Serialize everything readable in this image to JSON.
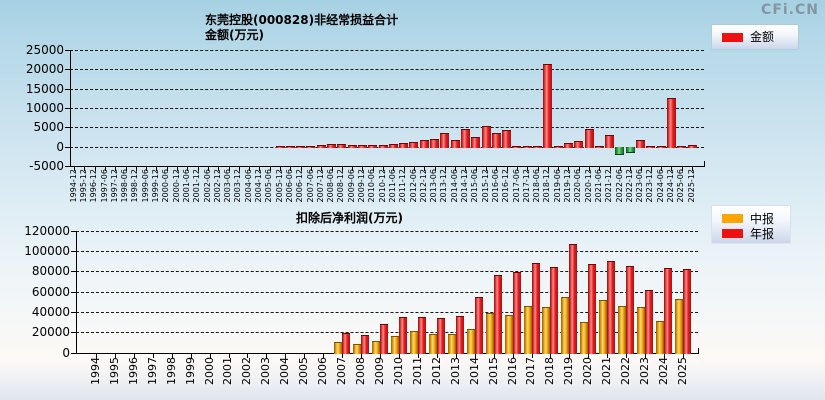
{
  "page": {
    "logo_text": "CFi.CN"
  },
  "chart_data": [
    {
      "type": "bar",
      "title": "东莞控股(000828)非经常损益合计",
      "subtitle": "金额(万元)",
      "legend": [
        {
          "key": "amount",
          "label": "金额",
          "color": "#ee1111"
        }
      ],
      "legend_position": "top-right",
      "grid": true,
      "ylim": [
        -5000,
        25000
      ],
      "yticks": [
        25000,
        20000,
        15000,
        10000,
        5000,
        0,
        -5000
      ],
      "categories": [
        "1994-12",
        "1995-12",
        "1996-12",
        "1997-06",
        "1997-12",
        "1998-06",
        "1998-12",
        "1999-06",
        "1999-12",
        "2000-06",
        "2000-12",
        "2001-06",
        "2001-12",
        "2002-06",
        "2002-12",
        "2003-06",
        "2003-12",
        "2004-06",
        "2004-12",
        "2005-06",
        "2005-12",
        "2006-06",
        "2006-12",
        "2007-06",
        "2007-12",
        "2008-06",
        "2008-12",
        "2009-06",
        "2009-12",
        "2010-06",
        "2010-12",
        "2011-06",
        "2011-12",
        "2012-06",
        "2012-12",
        "2013-06",
        "2013-12",
        "2014-06",
        "2014-12",
        "2015-06",
        "2015-12",
        "2016-06",
        "2016-12",
        "2017-06",
        "2017-12",
        "2018-06",
        "2018-12",
        "2019-06",
        "2019-12",
        "2020-06",
        "2020-12",
        "2021-06",
        "2021-12",
        "2022-06",
        "2022-12",
        "2023-06",
        "2023-12",
        "2024-06",
        "2024-12",
        "2025-06",
        "2025-12"
      ],
      "series": [
        {
          "key": "amount",
          "name": "金额",
          "values": [
            0,
            0,
            0,
            0,
            0,
            0,
            0,
            0,
            0,
            0,
            0,
            0,
            0,
            0,
            0,
            0,
            0,
            0,
            0,
            0,
            100,
            120,
            250,
            200,
            300,
            600,
            550,
            300,
            350,
            300,
            400,
            550,
            800,
            1200,
            1600,
            1900,
            3500,
            1600,
            4600,
            2400,
            5200,
            3450,
            4300,
            150,
            200,
            150,
            21300,
            260,
            860,
            1550,
            4650,
            120,
            3000,
            -1900,
            -1450,
            1720,
            120,
            130,
            12600,
            260,
            430
          ]
        }
      ],
      "bar_colors": {
        "positive": "#e42020",
        "negative": "#2f9e3f"
      }
    },
    {
      "type": "bar",
      "title": "扣除后净利润(万元)",
      "legend": [
        {
          "key": "interim",
          "label": "中报",
          "color": "#ffa500"
        },
        {
          "key": "annual",
          "label": "年报",
          "color": "#ee1111"
        }
      ],
      "legend_position": "top-right",
      "grid": true,
      "ylim": [
        0,
        120000
      ],
      "yticks": [
        120000,
        100000,
        80000,
        60000,
        40000,
        20000,
        0
      ],
      "categories": [
        "1994",
        "1995",
        "1996",
        "1997",
        "1998",
        "1999",
        "2000",
        "2001",
        "2002",
        "2003",
        "2004",
        "2005",
        "2006",
        "2007",
        "2008",
        "2009",
        "2010",
        "2011",
        "2012",
        "2013",
        "2014",
        "2015",
        "2016",
        "2017",
        "2018",
        "2019",
        "2020",
        "2021",
        "2022",
        "2023",
        "2024",
        "2025"
      ],
      "series": [
        {
          "key": "interim",
          "name": "中报",
          "values": [
            0,
            0,
            0,
            0,
            0,
            0,
            0,
            0,
            0,
            0,
            0,
            0,
            0,
            11000,
            8800,
            12000,
            16500,
            21000,
            18500,
            18400,
            23600,
            39300,
            37400,
            45900,
            44900,
            54800,
            30200,
            52100,
            45900,
            45300,
            31500,
            52900
          ]
        },
        {
          "key": "annual",
          "name": "年报",
          "values": [
            0,
            0,
            0,
            0,
            0,
            0,
            0,
            0,
            0,
            0,
            0,
            0,
            0,
            19800,
            17500,
            28500,
            35300,
            34800,
            33800,
            35700,
            54800,
            76400,
            79700,
            88500,
            84300,
            107200,
            87600,
            90200,
            85300,
            61700,
            83700,
            82600
          ]
        }
      ],
      "bar_colors": {
        "interim": "#f0a50a",
        "annual": "#e42020"
      }
    }
  ]
}
